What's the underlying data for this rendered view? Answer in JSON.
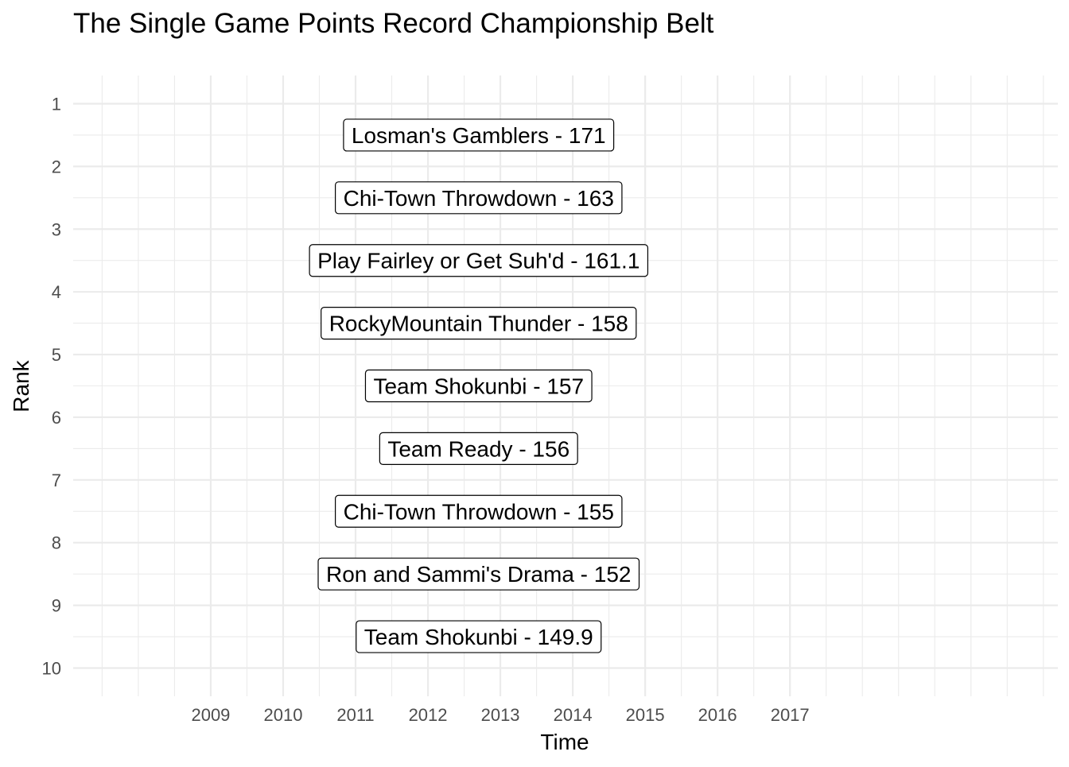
{
  "chart_data": {
    "type": "table",
    "title": "The Single Game Points Record Championship Belt",
    "xlabel": "Time",
    "ylabel": "Rank",
    "x_ticks": [
      "2009",
      "2010",
      "2011",
      "2012",
      "2013",
      "2014",
      "2015",
      "2016",
      "2017"
    ],
    "y_ticks": [
      "1",
      "2",
      "3",
      "4",
      "5",
      "6",
      "7",
      "8",
      "9",
      "10"
    ],
    "xlim": [
      2007.1,
      2020.7
    ],
    "ylim": [
      10.45,
      0.55
    ],
    "y_reversed": true,
    "grid": true,
    "label_x": 2012.7,
    "entries": [
      {
        "rank": 1.5,
        "team": "Losman's Gamblers",
        "points": 171,
        "text": "Losman's Gamblers - 171"
      },
      {
        "rank": 2.5,
        "team": "Chi-Town Throwdown",
        "points": 163,
        "text": "Chi-Town Throwdown - 163"
      },
      {
        "rank": 3.5,
        "team": "Play Fairley or Get Suh'd",
        "points": 161.1,
        "text": "Play Fairley or Get Suh'd - 161.1"
      },
      {
        "rank": 4.5,
        "team": "RockyMountain Thunder",
        "points": 158,
        "text": "RockyMountain Thunder - 158"
      },
      {
        "rank": 5.5,
        "team": "Team Shokunbi",
        "points": 157,
        "text": "Team Shokunbi - 157"
      },
      {
        "rank": 6.5,
        "team": "Team Ready",
        "points": 156,
        "text": "Team Ready - 156"
      },
      {
        "rank": 7.5,
        "team": "Chi-Town Throwdown",
        "points": 155,
        "text": "Chi-Town Throwdown - 155"
      },
      {
        "rank": 8.5,
        "team": "Ron and Sammi's Drama",
        "points": 152,
        "text": "Ron and Sammi's Drama - 152"
      },
      {
        "rank": 9.5,
        "team": "Team Shokunbi",
        "points": 149.9,
        "text": "Team Shokunbi - 149.9"
      }
    ]
  }
}
